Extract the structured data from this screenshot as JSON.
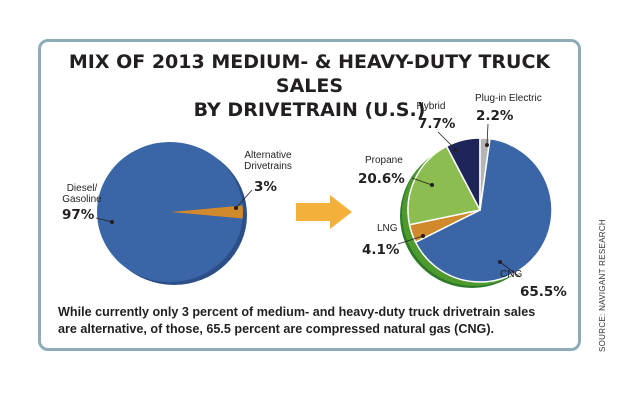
{
  "title_line1": "MIX OF 2013 MEDIUM- & HEAVY-DUTY TRUCK SALES",
  "title_line2": "BY DRIVETRAIN (U.S.)",
  "caption_line1": "While currently only 3 percent of medium- and heavy-duty truck drivetrain sales",
  "caption_line2": "are alternative, of those, 65.5 percent are compressed natural gas (CNG).",
  "source": "SOURCE: NAVIGANT RESEARCH",
  "arrow_color": "#f3b13b",
  "chart_data": [
    {
      "type": "pie",
      "slices": [
        {
          "label": "Diesel/\nGasoline",
          "value_label": "97%",
          "value": 97,
          "color": "#3a66a8"
        },
        {
          "label": "Alternative\nDrivetrains",
          "value_label": "3%",
          "value": 3,
          "color": "#d08a2c"
        }
      ]
    },
    {
      "type": "pie",
      "slices": [
        {
          "label": "CNG",
          "value_label": "65.5%",
          "value": 65.5,
          "color": "#3a66a8"
        },
        {
          "label": "LNG",
          "value_label": "4.1%",
          "value": 4.1,
          "color": "#d08a2c"
        },
        {
          "label": "Propane",
          "value_label": "20.6%",
          "value": 20.6,
          "color": "#8cbd50"
        },
        {
          "label": "Hybrid",
          "value_label": "7.7%",
          "value": 7.7,
          "color": "#1e2559"
        },
        {
          "label": "Plug-in Electric",
          "value_label": "2.2%",
          "value": 2.2,
          "color": "#b5b5b5"
        }
      ]
    }
  ]
}
